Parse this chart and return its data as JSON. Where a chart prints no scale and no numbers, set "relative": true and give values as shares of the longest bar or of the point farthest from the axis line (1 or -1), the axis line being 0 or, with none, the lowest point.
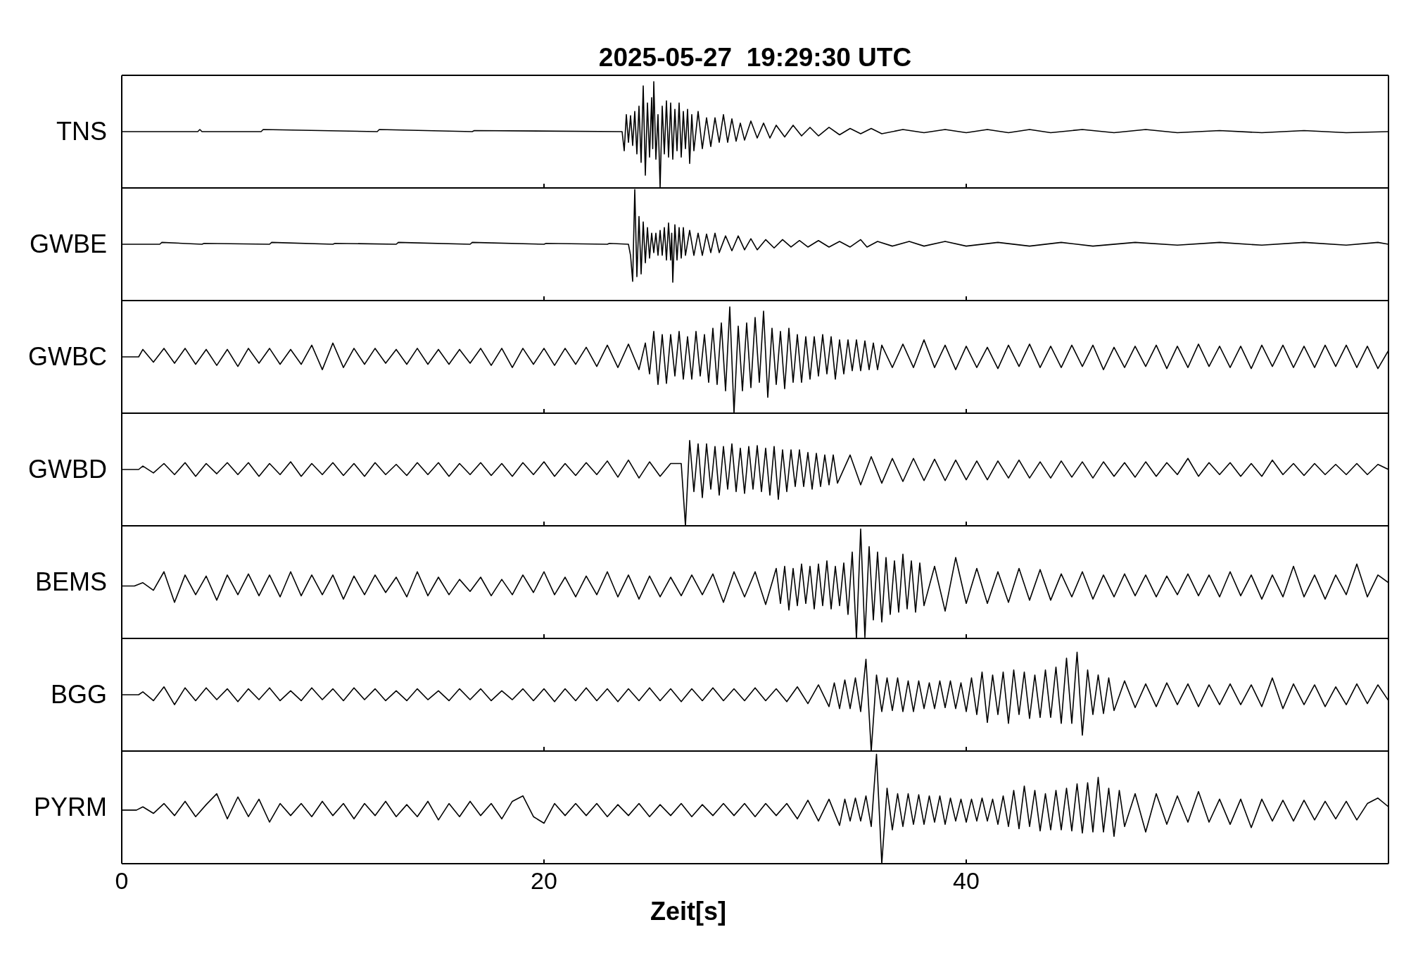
{
  "chart_data": [
    {
      "type": "line",
      "title": "2025-05-27  19:29:30 UTC",
      "ylabel": "TNS",
      "relative": true,
      "xlim": [
        0,
        60
      ],
      "xticks": [
        0,
        20,
        40
      ],
      "tick_labels": false,
      "x": [
        0,
        3.6,
        3.7,
        3.8,
        6.6,
        6.7,
        12.1,
        12.2,
        16.6,
        16.7,
        23.6,
        23.7,
        23.8,
        23.9,
        24,
        24.1,
        24.2,
        24.3,
        24.4,
        24.5,
        24.6,
        24.7,
        24.8,
        24.9,
        25,
        25.1,
        25.15,
        25.2,
        25.3,
        25.4,
        25.5,
        25.6,
        25.7,
        25.8,
        25.9,
        26,
        26.1,
        26.2,
        26.3,
        26.4,
        26.5,
        26.6,
        26.7,
        26.8,
        26.9,
        27,
        27.1,
        27.3,
        27.5,
        27.7,
        27.9,
        28.1,
        28.3,
        28.5,
        28.7,
        28.9,
        29.1,
        29.3,
        29.5,
        29.8,
        30.1,
        30.4,
        30.7,
        31,
        31.4,
        31.8,
        32.2,
        32.6,
        33,
        33.5,
        34,
        34.5,
        35,
        35.5,
        36,
        37,
        38,
        39,
        40,
        41,
        42,
        43,
        44,
        45.5,
        47,
        48.5,
        50,
        52,
        54,
        56,
        58,
        60
      ],
      "series": [
        {
          "color": "#000000",
          "values": [
            0.53,
            0.53,
            0.55,
            0.53,
            0.53,
            0.55,
            0.53,
            0.55,
            0.53,
            0.54,
            0.53,
            0.53,
            0.35,
            0.69,
            0.43,
            0.68,
            0.4,
            0.72,
            0.32,
            0.77,
            0.24,
            0.96,
            0.12,
            0.8,
            0.29,
            0.85,
            0.37,
            1,
            0.27,
            0.69,
            0,
            0.77,
            0.32,
            0.82,
            0.29,
            0.8,
            0.27,
            0.74,
            0.35,
            0.8,
            0.29,
            0.72,
            0.37,
            0.74,
            0.23,
            0.69,
            0.35,
            0.72,
            0.37,
            0.66,
            0.39,
            0.66,
            0.43,
            0.69,
            0.43,
            0.65,
            0.44,
            0.61,
            0.45,
            0.63,
            0.47,
            0.61,
            0.47,
            0.59,
            0.48,
            0.59,
            0.49,
            0.57,
            0.49,
            0.57,
            0.5,
            0.56,
            0.51,
            0.56,
            0.51,
            0.55,
            0.52,
            0.55,
            0.52,
            0.55,
            0.52,
            0.55,
            0.52,
            0.55,
            0.52,
            0.55,
            0.52,
            0.54,
            0.52,
            0.54,
            0.52,
            0.53
          ]
        }
      ]
    },
    {
      "type": "line",
      "ylabel": "GWBE",
      "relative": true,
      "xlim": [
        0,
        60
      ],
      "xticks": [
        0,
        20,
        40
      ],
      "tick_labels": false,
      "x": [
        0,
        1.8,
        1.9,
        3.8,
        3.9,
        7,
        7.1,
        10,
        10.1,
        13,
        13.1,
        16.5,
        16.6,
        20,
        20.1,
        23,
        23.1,
        24,
        24.1,
        24.2,
        24.3,
        24.4,
        24.5,
        24.6,
        24.7,
        24.8,
        24.9,
        25,
        25.1,
        25.2,
        25.3,
        25.4,
        25.5,
        25.6,
        25.7,
        25.8,
        25.9,
        26,
        26.05,
        26.1,
        26.2,
        26.3,
        26.4,
        26.5,
        26.6,
        26.7,
        26.9,
        27.1,
        27.3,
        27.5,
        27.7,
        27.9,
        28.1,
        28.3,
        28.6,
        28.9,
        29.2,
        29.5,
        29.8,
        30.1,
        30.5,
        30.9,
        31.3,
        31.7,
        32.1,
        32.5,
        33,
        33.5,
        34,
        34.5,
        35,
        35.3,
        35.8,
        36.5,
        37.3,
        38,
        39,
        40,
        41.5,
        43,
        44.5,
        46,
        48,
        50,
        52,
        54,
        56,
        58,
        59.5,
        60
      ],
      "series": [
        {
          "color": "#000000",
          "values": [
            0.41,
            0.41,
            0.43,
            0.41,
            0.42,
            0.41,
            0.43,
            0.41,
            0.42,
            0.41,
            0.43,
            0.41,
            0.43,
            0.41,
            0.42,
            0.41,
            0.42,
            0.41,
            0.29,
            0.01,
            1,
            0.06,
            0.71,
            0.09,
            0.65,
            0.21,
            0.59,
            0.26,
            0.53,
            0.32,
            0.53,
            0.29,
            0.56,
            0.29,
            0.59,
            0.24,
            0.64,
            0.24,
            0.53,
            0,
            0.62,
            0.24,
            0.59,
            0.26,
            0.59,
            0.29,
            0.56,
            0.29,
            0.53,
            0.29,
            0.52,
            0.32,
            0.53,
            0.32,
            0.5,
            0.34,
            0.5,
            0.35,
            0.47,
            0.35,
            0.46,
            0.37,
            0.46,
            0.38,
            0.45,
            0.38,
            0.45,
            0.38,
            0.44,
            0.38,
            0.46,
            0.38,
            0.44,
            0.39,
            0.44,
            0.39,
            0.44,
            0.39,
            0.43,
            0.39,
            0.43,
            0.39,
            0.43,
            0.4,
            0.43,
            0.4,
            0.43,
            0.4,
            0.43,
            0.41
          ]
        }
      ]
    },
    {
      "type": "line",
      "ylabel": "GWBC",
      "relative": true,
      "xlim": [
        0,
        60
      ],
      "xticks": [
        0,
        20,
        40
      ],
      "tick_labels": false,
      "x": [
        0,
        0.8,
        1,
        1.5,
        2,
        2.5,
        3,
        3.5,
        4,
        4.5,
        5,
        5.5,
        6,
        6.5,
        7,
        7.5,
        8,
        8.5,
        9,
        9.5,
        10,
        10.5,
        11,
        11.5,
        12,
        12.5,
        13,
        13.5,
        14,
        14.5,
        15,
        15.5,
        16,
        16.5,
        17,
        17.5,
        18,
        18.5,
        19,
        19.5,
        20,
        20.5,
        21,
        21.5,
        22,
        22.5,
        23,
        23.5,
        24,
        24.5,
        24.8,
        25,
        25.2,
        25.4,
        25.6,
        25.8,
        26,
        26.2,
        26.4,
        26.6,
        26.8,
        27,
        27.2,
        27.4,
        27.6,
        27.8,
        28,
        28.2,
        28.4,
        28.6,
        28.8,
        29,
        29.2,
        29.4,
        29.6,
        29.8,
        30,
        30.2,
        30.4,
        30.6,
        30.8,
        31,
        31.2,
        31.4,
        31.6,
        31.8,
        32,
        32.2,
        32.4,
        32.6,
        32.8,
        33,
        33.2,
        33.4,
        33.6,
        33.8,
        34,
        34.2,
        34.4,
        34.6,
        34.8,
        35,
        35.2,
        35.4,
        35.6,
        35.8,
        36,
        36.5,
        37,
        37.5,
        38,
        38.5,
        39,
        39.5,
        40,
        40.5,
        41,
        41.5,
        42,
        42.5,
        43,
        43.5,
        44,
        44.5,
        45,
        45.5,
        46,
        46.5,
        47,
        47.5,
        48,
        48.5,
        49,
        49.5,
        50,
        50.5,
        51,
        51.5,
        52,
        52.5,
        53,
        53.5,
        54,
        54.5,
        55,
        55.5,
        56,
        56.5,
        57,
        57.5,
        58,
        58.5,
        59,
        59.5,
        60
      ],
      "series": [
        {
          "color": "#000000",
          "values": [
            0.53,
            0.53,
            0.6,
            0.48,
            0.61,
            0.47,
            0.61,
            0.46,
            0.6,
            0.45,
            0.6,
            0.44,
            0.61,
            0.47,
            0.61,
            0.46,
            0.6,
            0.46,
            0.64,
            0.41,
            0.66,
            0.43,
            0.61,
            0.46,
            0.61,
            0.47,
            0.6,
            0.46,
            0.61,
            0.46,
            0.6,
            0.46,
            0.6,
            0.47,
            0.61,
            0.45,
            0.61,
            0.43,
            0.61,
            0.46,
            0.61,
            0.45,
            0.61,
            0.46,
            0.62,
            0.44,
            0.64,
            0.43,
            0.65,
            0.41,
            0.66,
            0.37,
            0.77,
            0.27,
            0.74,
            0.28,
            0.74,
            0.35,
            0.77,
            0.32,
            0.72,
            0.32,
            0.77,
            0.35,
            0.74,
            0.29,
            0.8,
            0.27,
            0.85,
            0.21,
            1,
            0,
            0.82,
            0.21,
            0.85,
            0.24,
            0.9,
            0.29,
            0.96,
            0.15,
            0.8,
            0.27,
            0.77,
            0.23,
            0.8,
            0.29,
            0.74,
            0.29,
            0.72,
            0.32,
            0.72,
            0.35,
            0.74,
            0.37,
            0.72,
            0.32,
            0.69,
            0.37,
            0.69,
            0.4,
            0.69,
            0.4,
            0.68,
            0.41,
            0.66,
            0.41,
            0.64,
            0.43,
            0.65,
            0.43,
            0.69,
            0.43,
            0.64,
            0.41,
            0.63,
            0.43,
            0.62,
            0.42,
            0.64,
            0.44,
            0.65,
            0.43,
            0.63,
            0.43,
            0.64,
            0.44,
            0.64,
            0.41,
            0.62,
            0.43,
            0.63,
            0.44,
            0.64,
            0.42,
            0.63,
            0.43,
            0.65,
            0.44,
            0.63,
            0.43,
            0.63,
            0.42,
            0.64,
            0.44,
            0.64,
            0.43,
            0.63,
            0.43,
            0.64,
            0.44,
            0.64,
            0.43,
            0.63,
            0.42,
            0.59
          ]
        }
      ]
    },
    {
      "type": "line",
      "ylabel": "GWBD",
      "relative": true,
      "xlim": [
        0,
        60
      ],
      "xticks": [
        0,
        20,
        40
      ],
      "tick_labels": false,
      "x": [
        0,
        0.8,
        1,
        1.5,
        2,
        2.5,
        3,
        3.5,
        4,
        4.5,
        5,
        5.5,
        6,
        6.5,
        7,
        7.5,
        8,
        8.5,
        9,
        9.5,
        10,
        10.5,
        11,
        11.5,
        12,
        12.5,
        13,
        13.5,
        14,
        14.5,
        15,
        15.5,
        16,
        16.5,
        17,
        17.5,
        18,
        18.5,
        19,
        19.5,
        20,
        20.5,
        21,
        21.5,
        22,
        22.5,
        23,
        23.5,
        24,
        24.5,
        25,
        25.5,
        26,
        26.5,
        26.7,
        26.9,
        27.1,
        27.3,
        27.5,
        27.7,
        27.9,
        28.1,
        28.3,
        28.5,
        28.7,
        28.9,
        29.1,
        29.3,
        29.5,
        29.7,
        29.9,
        30.1,
        30.3,
        30.5,
        30.7,
        30.9,
        31.1,
        31.3,
        31.5,
        31.7,
        31.9,
        32.1,
        32.3,
        32.5,
        32.7,
        32.9,
        33.1,
        33.3,
        33.5,
        33.7,
        33.9,
        34.5,
        35,
        35.5,
        36,
        36.5,
        37,
        37.5,
        38,
        38.5,
        39,
        39.5,
        40,
        40.5,
        41,
        41.5,
        42,
        42.5,
        43,
        43.5,
        44,
        44.5,
        45,
        45.5,
        46,
        46.5,
        47,
        47.5,
        48,
        48.5,
        49,
        49.5,
        50,
        50.5,
        51,
        51.5,
        52,
        52.5,
        53,
        53.5,
        54,
        54.5,
        55,
        55.5,
        56,
        56.5,
        57,
        57.5,
        58,
        58.5,
        59,
        59.5,
        60
      ],
      "series": [
        {
          "color": "#000000",
          "values": [
            0.66,
            0.66,
            0.7,
            0.62,
            0.73,
            0.6,
            0.74,
            0.58,
            0.73,
            0.61,
            0.74,
            0.6,
            0.74,
            0.58,
            0.73,
            0.6,
            0.75,
            0.58,
            0.73,
            0.6,
            0.74,
            0.59,
            0.73,
            0.58,
            0.74,
            0.6,
            0.72,
            0.59,
            0.74,
            0.6,
            0.74,
            0.58,
            0.73,
            0.6,
            0.74,
            0.59,
            0.73,
            0.58,
            0.74,
            0.6,
            0.75,
            0.58,
            0.73,
            0.59,
            0.74,
            0.6,
            0.76,
            0.57,
            0.77,
            0.56,
            0.75,
            0.58,
            0.73,
            0.73,
            0,
            1,
            0.4,
            0.96,
            0.33,
            0.96,
            0.43,
            0.93,
            0.36,
            0.93,
            0.43,
            0.96,
            0.4,
            0.91,
            0.38,
            0.93,
            0.43,
            0.94,
            0.4,
            0.91,
            0.36,
            0.93,
            0.31,
            0.89,
            0.4,
            0.89,
            0.46,
            0.89,
            0.46,
            0.86,
            0.43,
            0.85,
            0.46,
            0.83,
            0.48,
            0.83,
            0.5,
            0.83,
            0.48,
            0.81,
            0.5,
            0.79,
            0.52,
            0.79,
            0.53,
            0.78,
            0.53,
            0.77,
            0.54,
            0.76,
            0.54,
            0.76,
            0.56,
            0.77,
            0.56,
            0.75,
            0.56,
            0.76,
            0.57,
            0.75,
            0.56,
            0.75,
            0.58,
            0.74,
            0.57,
            0.75,
            0.58,
            0.74,
            0.6,
            0.79,
            0.58,
            0.74,
            0.6,
            0.74,
            0.58,
            0.73,
            0.58,
            0.77,
            0.6,
            0.73,
            0.59,
            0.73,
            0.6,
            0.72,
            0.6,
            0.73,
            0.6,
            0.72,
            0.66
          ]
        }
      ]
    },
    {
      "type": "line",
      "ylabel": "BEMS",
      "relative": true,
      "xlim": [
        0,
        60
      ],
      "xticks": [
        0,
        20,
        40
      ],
      "tick_labels": false,
      "x": [
        0,
        0.6,
        1,
        1.5,
        2,
        2.5,
        3,
        3.5,
        4,
        4.5,
        5,
        5.5,
        6,
        6.5,
        7,
        7.5,
        8,
        8.5,
        9,
        9.5,
        10,
        10.5,
        11,
        11.5,
        12,
        12.5,
        13,
        13.5,
        14,
        14.5,
        15,
        15.5,
        16,
        16.5,
        17,
        17.5,
        18,
        18.5,
        19,
        19.5,
        20,
        20.5,
        21,
        21.5,
        22,
        22.5,
        23,
        23.5,
        24,
        24.5,
        25,
        25.5,
        26,
        26.5,
        27,
        27.5,
        28,
        28.5,
        29,
        29.5,
        30,
        30.5,
        31,
        31.2,
        31.4,
        31.6,
        31.8,
        32,
        32.2,
        32.4,
        32.6,
        32.8,
        33,
        33.2,
        33.4,
        33.6,
        33.8,
        34,
        34.2,
        34.4,
        34.6,
        34.8,
        35,
        35.2,
        35.4,
        35.6,
        35.8,
        36,
        36.2,
        36.4,
        36.6,
        36.8,
        37,
        37.2,
        37.4,
        37.6,
        37.8,
        38,
        38.5,
        39,
        39.5,
        40,
        40.5,
        41,
        41.5,
        42,
        42.5,
        43,
        43.5,
        44,
        44.5,
        45,
        45.5,
        46,
        46.5,
        47,
        47.5,
        48,
        48.5,
        49,
        49.5,
        50,
        50.5,
        51,
        51.5,
        52,
        52.5,
        53,
        53.5,
        54,
        54.5,
        55,
        55.5,
        56,
        56.5,
        57,
        57.5,
        58,
        58.5,
        59,
        59.5,
        60
      ],
      "series": [
        {
          "color": "#000000",
          "values": [
            0.48,
            0.48,
            0.51,
            0.44,
            0.61,
            0.33,
            0.58,
            0.4,
            0.57,
            0.35,
            0.58,
            0.4,
            0.59,
            0.39,
            0.58,
            0.38,
            0.61,
            0.39,
            0.58,
            0.4,
            0.58,
            0.36,
            0.57,
            0.4,
            0.58,
            0.42,
            0.56,
            0.38,
            0.61,
            0.39,
            0.56,
            0.4,
            0.54,
            0.43,
            0.56,
            0.39,
            0.54,
            0.4,
            0.58,
            0.42,
            0.61,
            0.4,
            0.56,
            0.38,
            0.57,
            0.4,
            0.61,
            0.38,
            0.58,
            0.36,
            0.57,
            0.38,
            0.56,
            0.39,
            0.58,
            0.4,
            0.59,
            0.33,
            0.61,
            0.38,
            0.61,
            0.31,
            0.64,
            0.32,
            0.66,
            0.26,
            0.64,
            0.3,
            0.68,
            0.32,
            0.66,
            0.27,
            0.68,
            0.3,
            0.71,
            0.27,
            0.66,
            0.3,
            0.69,
            0.22,
            0.79,
            0,
            1,
            0.01,
            0.84,
            0.17,
            0.79,
            0.15,
            0.74,
            0.22,
            0.71,
            0.24,
            0.77,
            0.27,
            0.71,
            0.24,
            0.69,
            0.3,
            0.66,
            0.25,
            0.74,
            0.32,
            0.64,
            0.32,
            0.61,
            0.33,
            0.64,
            0.35,
            0.63,
            0.35,
            0.59,
            0.38,
            0.61,
            0.36,
            0.58,
            0.38,
            0.59,
            0.39,
            0.58,
            0.38,
            0.57,
            0.4,
            0.59,
            0.39,
            0.58,
            0.38,
            0.61,
            0.39,
            0.58,
            0.36,
            0.58,
            0.38,
            0.66,
            0.38,
            0.58,
            0.36,
            0.58,
            0.4,
            0.68,
            0.38,
            0.58,
            0.51
          ]
        }
      ]
    },
    {
      "type": "line",
      "ylabel": "BGG",
      "relative": true,
      "xlim": [
        0,
        60
      ],
      "xticks": [
        0,
        20,
        40
      ],
      "tick_labels": false,
      "x": [
        0,
        0.8,
        1,
        1.5,
        2,
        2.5,
        3,
        3.5,
        4,
        4.5,
        5,
        5.5,
        6,
        6.5,
        7,
        7.5,
        8,
        8.5,
        9,
        9.5,
        10,
        10.5,
        11,
        11.5,
        12,
        12.5,
        13,
        13.5,
        14,
        14.5,
        15,
        15.5,
        16,
        16.5,
        17,
        17.5,
        18,
        18.5,
        19,
        19.5,
        20,
        20.5,
        21,
        21.5,
        22,
        22.5,
        23,
        23.5,
        24,
        24.5,
        25,
        25.5,
        26,
        26.5,
        27,
        27.5,
        28,
        28.5,
        29,
        29.5,
        30,
        30.5,
        31,
        31.5,
        32,
        32.5,
        33,
        33.5,
        33.75,
        34,
        34.25,
        34.5,
        34.75,
        35,
        35.25,
        35.5,
        35.75,
        36,
        36.25,
        36.5,
        36.75,
        37,
        37.25,
        37.5,
        37.75,
        38,
        38.25,
        38.5,
        38.75,
        39,
        39.25,
        39.5,
        39.75,
        40,
        40.25,
        40.5,
        40.75,
        41,
        41.25,
        41.5,
        41.75,
        42,
        42.25,
        42.5,
        42.75,
        43,
        43.25,
        43.5,
        43.75,
        44,
        44.25,
        44.5,
        44.75,
        45,
        45.25,
        45.5,
        45.75,
        46,
        46.25,
        46.5,
        46.75,
        47,
        47.5,
        48,
        48.5,
        49,
        49.5,
        50,
        50.5,
        51,
        51.5,
        52,
        52.5,
        53,
        53.5,
        54,
        54.5,
        55,
        55.5,
        56,
        56.5,
        57,
        57.5,
        58,
        58.5,
        59,
        59.5,
        60
      ],
      "series": [
        {
          "color": "#000000",
          "values": [
            0.57,
            0.57,
            0.6,
            0.51,
            0.65,
            0.47,
            0.64,
            0.51,
            0.64,
            0.52,
            0.63,
            0.5,
            0.63,
            0.52,
            0.64,
            0.51,
            0.61,
            0.51,
            0.64,
            0.52,
            0.63,
            0.51,
            0.64,
            0.52,
            0.63,
            0.51,
            0.61,
            0.51,
            0.63,
            0.52,
            0.61,
            0.51,
            0.63,
            0.52,
            0.63,
            0.51,
            0.61,
            0.52,
            0.63,
            0.51,
            0.63,
            0.5,
            0.63,
            0.51,
            0.64,
            0.51,
            0.63,
            0.5,
            0.63,
            0.51,
            0.64,
            0.51,
            0.63,
            0.5,
            0.63,
            0.51,
            0.64,
            0.51,
            0.63,
            0.51,
            0.64,
            0.51,
            0.63,
            0.5,
            0.65,
            0.48,
            0.67,
            0.45,
            0.69,
            0.43,
            0.72,
            0.43,
            0.74,
            0.4,
            0.93,
            0,
            0.77,
            0.4,
            0.74,
            0.41,
            0.74,
            0.4,
            0.71,
            0.4,
            0.71,
            0.43,
            0.69,
            0.43,
            0.71,
            0.44,
            0.71,
            0.43,
            0.69,
            0.4,
            0.74,
            0.37,
            0.8,
            0.29,
            0.77,
            0.37,
            0.8,
            0.28,
            0.82,
            0.37,
            0.8,
            0.33,
            0.77,
            0.34,
            0.82,
            0.34,
            0.85,
            0.28,
            0.94,
            0.28,
            1,
            0.16,
            0.82,
            0.37,
            0.77,
            0.38,
            0.74,
            0.41,
            0.71,
            0.44,
            0.68,
            0.45,
            0.69,
            0.47,
            0.68,
            0.45,
            0.67,
            0.47,
            0.68,
            0.47,
            0.67,
            0.45,
            0.74,
            0.43,
            0.68,
            0.47,
            0.67,
            0.45,
            0.65,
            0.47,
            0.68,
            0.48,
            0.67,
            0.51
          ]
        }
      ]
    },
    {
      "type": "line",
      "ylabel": "PYRM",
      "xlabel": "Zeit[s]",
      "relative": true,
      "xlim": [
        0,
        60
      ],
      "xticks": [
        0,
        20,
        40
      ],
      "x": [
        0,
        0.7,
        1,
        1.5,
        2,
        2.5,
        3,
        3.5,
        4,
        4.5,
        5,
        5.5,
        6,
        6.5,
        7,
        7.5,
        8,
        8.5,
        9,
        9.5,
        10,
        10.5,
        11,
        11.5,
        12,
        12.5,
        13,
        13.5,
        14,
        14.5,
        15,
        15.5,
        16,
        16.5,
        17,
        17.5,
        18,
        18.5,
        19,
        19.5,
        20,
        20.5,
        21,
        21.5,
        22,
        22.5,
        23,
        23.5,
        24,
        24.5,
        25,
        25.5,
        26,
        26.5,
        27,
        27.5,
        28,
        28.5,
        29,
        29.5,
        30,
        30.5,
        31,
        31.5,
        32,
        32.5,
        33,
        33.5,
        34,
        34.25,
        34.5,
        34.75,
        35,
        35.25,
        35.5,
        35.75,
        36,
        36.25,
        36.5,
        36.75,
        37,
        37.25,
        37.5,
        37.75,
        38,
        38.25,
        38.5,
        38.75,
        39,
        39.25,
        39.5,
        39.75,
        40,
        40.25,
        40.5,
        40.75,
        41,
        41.25,
        41.5,
        41.75,
        42,
        42.25,
        42.5,
        42.75,
        43,
        43.25,
        43.5,
        43.75,
        44,
        44.25,
        44.5,
        44.75,
        45,
        45.25,
        45.5,
        45.75,
        46,
        46.25,
        46.5,
        46.75,
        47,
        47.25,
        47.5,
        48,
        48.5,
        49,
        49.5,
        50,
        50.5,
        51,
        51.5,
        52,
        52.5,
        53,
        53.5,
        54,
        54.5,
        55,
        55.5,
        56,
        56.5,
        57,
        57.5,
        58,
        58.5,
        59,
        59.5,
        60
      ],
      "series": [
        {
          "color": "#000000",
          "values": [
            0.49,
            0.49,
            0.52,
            0.46,
            0.55,
            0.44,
            0.57,
            0.43,
            0.54,
            0.64,
            0.41,
            0.61,
            0.43,
            0.59,
            0.38,
            0.55,
            0.44,
            0.55,
            0.43,
            0.57,
            0.44,
            0.55,
            0.41,
            0.55,
            0.44,
            0.57,
            0.43,
            0.54,
            0.43,
            0.57,
            0.4,
            0.55,
            0.43,
            0.57,
            0.44,
            0.55,
            0.41,
            0.57,
            0.62,
            0.43,
            0.37,
            0.55,
            0.44,
            0.55,
            0.44,
            0.55,
            0.43,
            0.54,
            0.44,
            0.55,
            0.43,
            0.54,
            0.44,
            0.55,
            0.43,
            0.54,
            0.44,
            0.55,
            0.44,
            0.55,
            0.43,
            0.55,
            0.44,
            0.55,
            0.41,
            0.58,
            0.39,
            0.59,
            0.35,
            0.59,
            0.39,
            0.6,
            0.39,
            0.62,
            0.34,
            1,
            0,
            0.69,
            0.31,
            0.64,
            0.34,
            0.64,
            0.36,
            0.63,
            0.36,
            0.62,
            0.38,
            0.62,
            0.36,
            0.6,
            0.39,
            0.59,
            0.38,
            0.59,
            0.39,
            0.6,
            0.39,
            0.59,
            0.36,
            0.62,
            0.34,
            0.67,
            0.32,
            0.71,
            0.34,
            0.67,
            0.3,
            0.64,
            0.31,
            0.67,
            0.31,
            0.69,
            0.3,
            0.73,
            0.28,
            0.74,
            0.29,
            0.79,
            0.29,
            0.69,
            0.25,
            0.67,
            0.34,
            0.64,
            0.29,
            0.64,
            0.36,
            0.62,
            0.38,
            0.66,
            0.38,
            0.59,
            0.36,
            0.59,
            0.33,
            0.59,
            0.39,
            0.58,
            0.39,
            0.58,
            0.4,
            0.57,
            0.41,
            0.57,
            0.4,
            0.55,
            0.6,
            0.52
          ]
        }
      ]
    }
  ]
}
